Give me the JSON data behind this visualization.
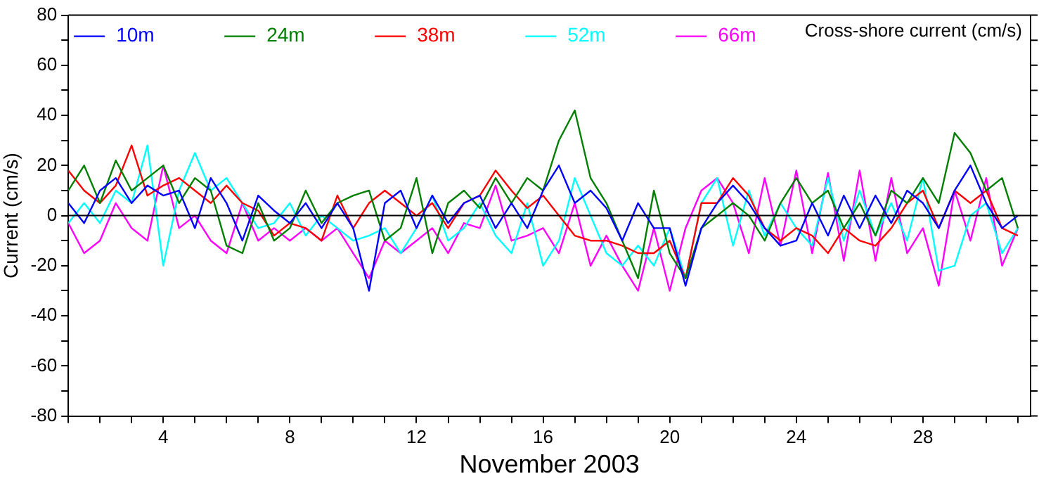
{
  "chart_data": {
    "type": "line",
    "title": "Cross-shore current (cm/s)",
    "xlabel": "November 2003",
    "ylabel": "Current (cm/s)",
    "x": [
      1,
      1.5,
      2,
      2.5,
      3,
      3.5,
      4,
      4.5,
      5,
      5.5,
      6,
      6.5,
      7,
      7.5,
      8,
      8.5,
      9,
      9.5,
      10,
      10.5,
      11,
      11.5,
      12,
      12.5,
      13,
      13.5,
      14,
      14.5,
      15,
      15.5,
      16,
      16.5,
      17,
      17.5,
      18,
      18.5,
      19,
      19.5,
      20,
      20.5,
      21,
      21.5,
      22,
      22.5,
      23,
      23.5,
      24,
      24.5,
      25,
      25.5,
      26,
      26.5,
      27,
      27.5,
      28,
      28.5,
      29,
      29.5,
      30,
      30.5,
      31
    ],
    "series": [
      {
        "name": "10m",
        "color": "#0000ff",
        "values": [
          5,
          -3,
          10,
          15,
          5,
          12,
          8,
          10,
          -5,
          15,
          5,
          -10,
          8,
          2,
          -3,
          5,
          -5,
          5,
          -5,
          -30,
          5,
          10,
          -5,
          8,
          -3,
          5,
          8,
          -5,
          5,
          -5,
          10,
          20,
          5,
          10,
          3,
          -10,
          5,
          -5,
          -5,
          -28,
          -5,
          5,
          12,
          5,
          -5,
          -12,
          -10,
          5,
          -8,
          8,
          -5,
          8,
          -3,
          10,
          5,
          -5,
          10,
          20,
          5,
          -5,
          0
        ]
      },
      {
        "name": "24m",
        "color": "#007f00",
        "values": [
          10,
          20,
          5,
          22,
          10,
          15,
          20,
          5,
          15,
          10,
          -12,
          -15,
          5,
          -10,
          -5,
          10,
          -3,
          5,
          8,
          10,
          -10,
          -5,
          15,
          -15,
          5,
          10,
          3,
          15,
          5,
          15,
          10,
          30,
          42,
          15,
          5,
          -10,
          -25,
          10,
          -15,
          -25,
          -5,
          0,
          5,
          0,
          -10,
          5,
          15,
          5,
          10,
          -5,
          5,
          -8,
          10,
          5,
          15,
          5,
          33,
          25,
          10,
          15,
          -5
        ]
      },
      {
        "name": "38m",
        "color": "#ff0000",
        "values": [
          18,
          10,
          5,
          12,
          28,
          8,
          12,
          15,
          10,
          5,
          12,
          5,
          2,
          -8,
          -3,
          -5,
          -10,
          8,
          -5,
          5,
          10,
          5,
          0,
          5,
          -5,
          5,
          8,
          18,
          10,
          3,
          8,
          0,
          -8,
          -10,
          -10,
          -12,
          -15,
          -15,
          -10,
          -25,
          5,
          5,
          15,
          8,
          -5,
          -10,
          -5,
          -8,
          -15,
          -5,
          -10,
          -12,
          -5,
          5,
          10,
          -5,
          10,
          5,
          10,
          -5,
          -8
        ]
      },
      {
        "name": "52m",
        "color": "#00ffff",
        "values": [
          -3,
          5,
          -3,
          10,
          5,
          28,
          -20,
          10,
          25,
          10,
          15,
          5,
          -5,
          -3,
          5,
          -8,
          0,
          -5,
          -10,
          -8,
          -5,
          -15,
          -5,
          8,
          -10,
          -5,
          5,
          -8,
          -15,
          5,
          -20,
          -10,
          15,
          0,
          -15,
          -20,
          -12,
          -20,
          -5,
          -25,
          5,
          15,
          -12,
          10,
          -8,
          5,
          -5,
          -12,
          15,
          -10,
          10,
          -8,
          5,
          -10,
          15,
          -22,
          -20,
          0,
          5,
          -15,
          -5
        ]
      },
      {
        "name": "66m",
        "color": "#ff00ff",
        "values": [
          -3,
          -15,
          -10,
          5,
          -5,
          -10,
          20,
          -5,
          0,
          -10,
          -15,
          5,
          -10,
          -5,
          -10,
          -5,
          -10,
          -5,
          -15,
          -25,
          -10,
          -15,
          -10,
          -5,
          -15,
          -3,
          -5,
          12,
          -10,
          -8,
          -5,
          -15,
          5,
          -20,
          -8,
          -20,
          -30,
          -5,
          -30,
          -5,
          10,
          15,
          5,
          -15,
          15,
          -12,
          18,
          -15,
          17,
          -18,
          18,
          -18,
          15,
          -15,
          -5,
          -28,
          10,
          -10,
          15,
          -20,
          -5
        ]
      }
    ],
    "xlim": [
      1,
      31.4
    ],
    "xticks": [
      {
        "value": 1,
        "label": null
      },
      {
        "value": 2,
        "label": null
      },
      {
        "value": 3,
        "label": null
      },
      4,
      {
        "value": 5,
        "label": null
      },
      {
        "value": 6,
        "label": null
      },
      {
        "value": 7,
        "label": null
      },
      8,
      {
        "value": 9,
        "label": null
      },
      {
        "value": 10,
        "label": null
      },
      {
        "value": 11,
        "label": null
      },
      12,
      {
        "value": 13,
        "label": null
      },
      {
        "value": 14,
        "label": null
      },
      {
        "value": 15,
        "label": null
      },
      16,
      {
        "value": 17,
        "label": null
      },
      {
        "value": 18,
        "label": null
      },
      {
        "value": 19,
        "label": null
      },
      20,
      {
        "value": 21,
        "label": null
      },
      {
        "value": 22,
        "label": null
      },
      {
        "value": 23,
        "label": null
      },
      24,
      {
        "value": 25,
        "label": null
      },
      {
        "value": 26,
        "label": null
      },
      {
        "value": 27,
        "label": null
      },
      28,
      {
        "value": 29,
        "label": null
      },
      {
        "value": 30,
        "label": null
      },
      {
        "value": 31,
        "label": null
      }
    ],
    "ylim": [
      -80,
      80
    ],
    "yticks": [
      -80,
      {
        "value": -70,
        "label": null
      },
      -60,
      {
        "value": -50,
        "label": null
      },
      -40,
      {
        "value": -30,
        "label": null
      },
      -20,
      {
        "value": -10,
        "label": null
      },
      0,
      {
        "value": 10,
        "label": null
      },
      20,
      {
        "value": 30,
        "label": null
      },
      40,
      {
        "value": 50,
        "label": null
      },
      60,
      {
        "value": 70,
        "label": null
      },
      80
    ],
    "ref_lines": [
      {
        "axis": "y",
        "value": 0,
        "color": "#000000"
      }
    ],
    "grid": false,
    "legend": "top left",
    "marker": "none",
    "line_style": "solid"
  }
}
